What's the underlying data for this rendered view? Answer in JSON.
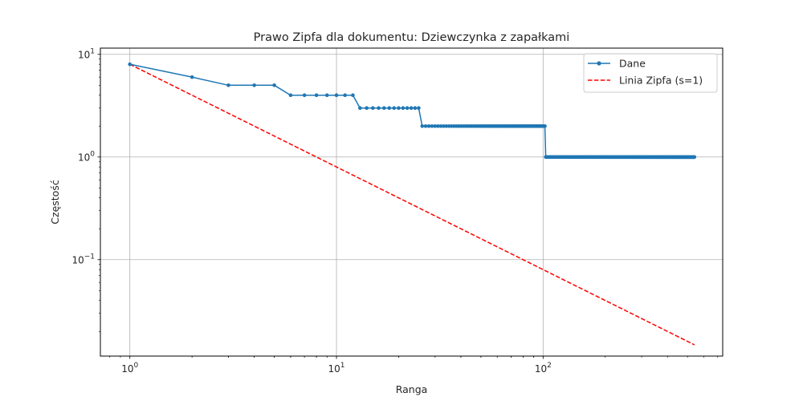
{
  "chart_data": {
    "type": "line",
    "title": "Prawo Zipfa dla dokumentu: Dziewczynka z zapałkami",
    "xlabel": "Ranga",
    "ylabel": "Częstość",
    "xscale": "log",
    "yscale": "log",
    "xlim": [
      0.72,
      740
    ],
    "ylim": [
      0.0115,
      11.5
    ],
    "grid": true,
    "legend_position": "top-right",
    "x_ticks": [
      {
        "value": 1,
        "base": "10",
        "exp": "0"
      },
      {
        "value": 10,
        "base": "10",
        "exp": "1"
      },
      {
        "value": 100,
        "base": "10",
        "exp": "2"
      }
    ],
    "y_ticks": [
      {
        "value": 10,
        "base": "10",
        "exp": "1"
      },
      {
        "value": 1,
        "base": "10",
        "exp": "0"
      },
      {
        "value": 0.1,
        "base": "10",
        "exp": "−1"
      }
    ],
    "series": [
      {
        "name": "Dane",
        "color": "#1f77b4",
        "style": "solid-with-markers",
        "points": [
          [
            1,
            8
          ],
          [
            2,
            6
          ],
          [
            3,
            5
          ],
          [
            4,
            5
          ],
          [
            5,
            5
          ]
        ],
        "runs": [
          {
            "from": 6,
            "to": 12,
            "value": 4
          },
          {
            "from": 13,
            "to": 25,
            "value": 3
          },
          {
            "from": 26,
            "to": 102,
            "value": 2
          },
          {
            "from": 103,
            "to": 540,
            "value": 1
          }
        ]
      },
      {
        "name": "Linia Zipfa (s=1)",
        "color": "#ff0000",
        "style": "dashed",
        "formula": "8 / x",
        "x_range": [
          1,
          540
        ]
      }
    ]
  }
}
